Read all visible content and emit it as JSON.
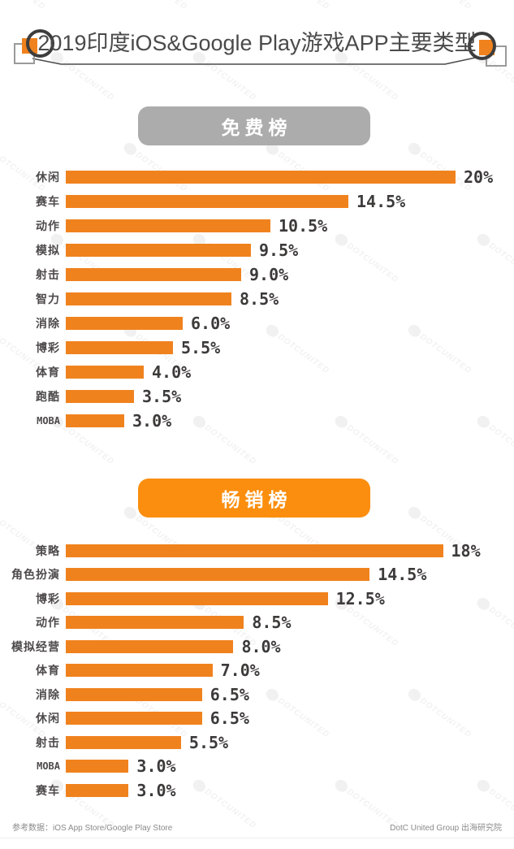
{
  "meta": {
    "title": "2019印度iOS&Google Play游戏APP主要类型",
    "footer_left": "参考数据：iOS App Store/Google Play Store",
    "footer_right": "DotC United Group 出海研究院",
    "watermark_text": "DOTCUNITED"
  },
  "colors": {
    "bar_orange": "#F0821E",
    "pill_orange": "#FB8E0E",
    "pill_gray": "#ACACAC",
    "category_text": "#4E4A4B",
    "value_text": "#3D3A3A",
    "title_text": "#4A4A4A",
    "footer_text": "#8A8A8A"
  },
  "chart_data": [
    {
      "type": "bar",
      "orientation": "horizontal",
      "title": "免费榜",
      "header_bg": "#ACACAC",
      "bar_color": "#F0821E",
      "categories": [
        "休闲",
        "赛车",
        "动作",
        "模拟",
        "射击",
        "智力",
        "消除",
        "博彩",
        "体育",
        "跑酷",
        "MOBA"
      ],
      "values": [
        20,
        14.5,
        10.5,
        9.5,
        9.0,
        8.5,
        6.0,
        5.5,
        4.0,
        3.5,
        3.0
      ],
      "value_labels": [
        "20%",
        "14.5%",
        "10.5%",
        "9.5%",
        "9.0%",
        "8.5%",
        "6.0%",
        "5.5%",
        "4.0%",
        "3.5%",
        "3.0%"
      ],
      "xlim": [
        0,
        20
      ],
      "grid": false,
      "legend": false
    },
    {
      "type": "bar",
      "orientation": "horizontal",
      "title": "畅销榜",
      "header_bg": "#FB8E0E",
      "bar_color": "#F0821E",
      "categories": [
        "策略",
        "角色扮演",
        "博彩",
        "动作",
        "模拟经营",
        "体育",
        "消除",
        "休闲",
        "射击",
        "MOBA",
        "赛车"
      ],
      "values": [
        18,
        14.5,
        12.5,
        8.5,
        8.0,
        7.0,
        6.5,
        6.5,
        5.5,
        3.0,
        3.0
      ],
      "value_labels": [
        "18%",
        "14.5%",
        "12.5%",
        "8.5%",
        "8.0%",
        "7.0%",
        "6.5%",
        "6.5%",
        "5.5%",
        "3.0%",
        "3.0%"
      ],
      "xlim": [
        0,
        18.6
      ],
      "grid": false,
      "legend": false
    }
  ]
}
